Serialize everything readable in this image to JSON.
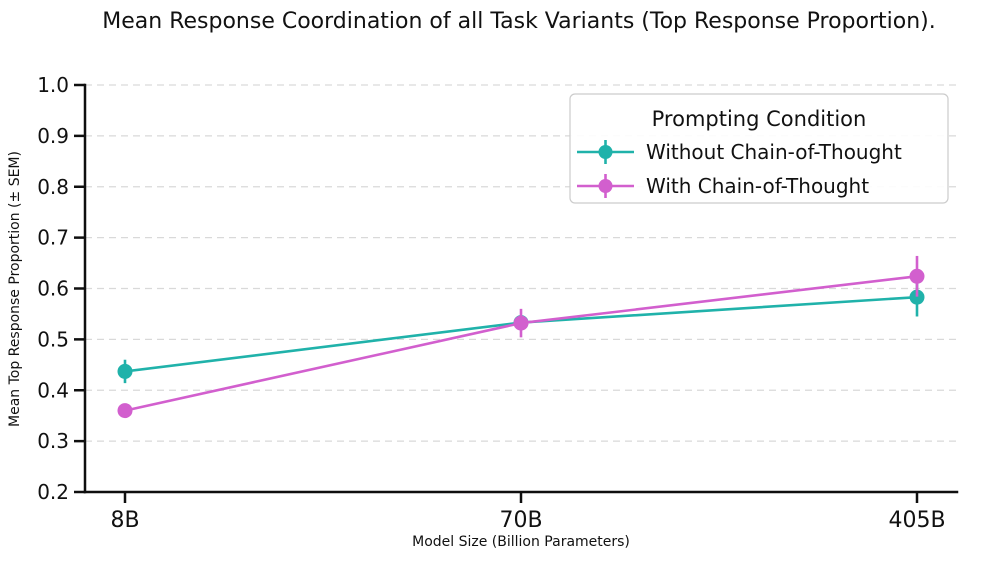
{
  "page": {
    "background": "#ffffff"
  },
  "chart_data": {
    "type": "line",
    "title": "Mean Response Coordination of all Task Variants (Top Response Proportion).",
    "xlabel": "Model Size (Billion Parameters)",
    "ylabel": "Mean Top Response Proportion (± SEM)",
    "categories": [
      "8B",
      "70B",
      "405B"
    ],
    "ylim": [
      0.2,
      1.0
    ],
    "yticks": [
      0.2,
      0.3,
      0.4,
      0.5,
      0.6,
      0.7,
      0.8,
      0.9,
      1.0
    ],
    "ytick_labels": [
      "0.2",
      "0.3",
      "0.4",
      "0.5",
      "0.6",
      "0.7",
      "0.8",
      "0.9",
      "1.0"
    ],
    "grid": {
      "axis": "y",
      "style": "dashed",
      "color": "#d9d9d9"
    },
    "legend": {
      "title": "Prompting Condition",
      "position": "upper right"
    },
    "series": [
      {
        "name": "Without Chain-of-Thought",
        "color": "#20b2aa",
        "values": [
          0.437,
          0.533,
          0.583
        ],
        "sem": [
          0.023,
          0.015,
          0.038
        ]
      },
      {
        "name": "With Chain-of-Thought",
        "color": "#d25fce",
        "values": [
          0.36,
          0.532,
          0.624
        ],
        "sem": [
          0.005,
          0.028,
          0.04
        ]
      }
    ]
  }
}
